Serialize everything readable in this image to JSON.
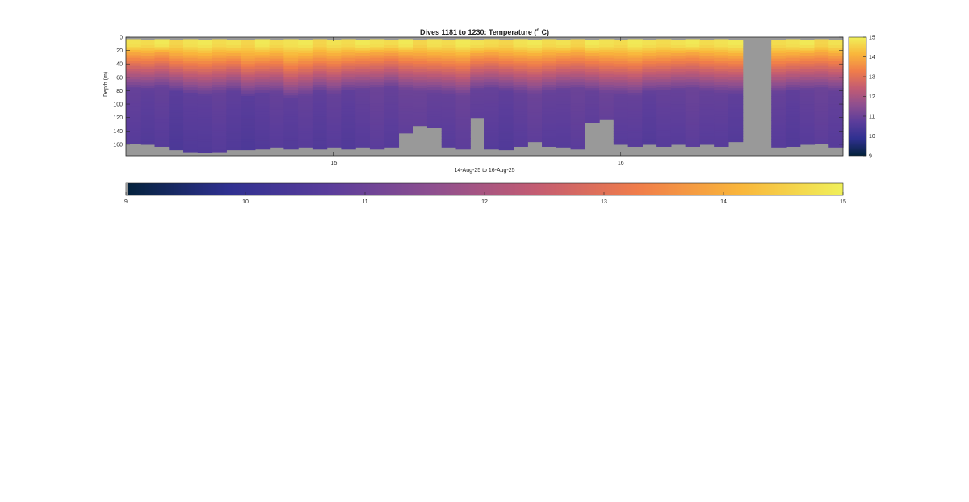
{
  "chart_data": {
    "type": "heatmap",
    "title": "Dives 1181 to 1230: Temperature (",
    "title_superscript": "o",
    "title_suffix": " C)",
    "xlabel": "14-Aug-25 to 16-Aug-25",
    "ylabel": "Depth (m)",
    "x_ticks": [
      "15",
      "16"
    ],
    "x_tick_dives": [
      1195,
      1215
    ],
    "y_ticks": [
      0,
      20,
      40,
      60,
      80,
      100,
      120,
      140,
      160
    ],
    "ylim": [
      0,
      177
    ],
    "xlim_dives": [
      1181,
      1230
    ],
    "colorbar_ticks": [
      9,
      10,
      11,
      12,
      13,
      14,
      15
    ],
    "clim": [
      9,
      15
    ],
    "colormap": [
      "#03223b",
      "#2f3090",
      "#5b3d9b",
      "#8e4f8f",
      "#c35c72",
      "#f07d4a",
      "#f9b63b",
      "#f0f05a"
    ],
    "missing_color": "#999999",
    "dives": [
      1181,
      1182,
      1183,
      1184,
      1185,
      1186,
      1187,
      1188,
      1189,
      1190,
      1191,
      1192,
      1193,
      1194,
      1195,
      1196,
      1197,
      1198,
      1199,
      1200,
      1201,
      1202,
      1203,
      1204,
      1205,
      1206,
      1207,
      1208,
      1209,
      1210,
      1211,
      1212,
      1213,
      1214,
      1215,
      1216,
      1217,
      1218,
      1219,
      1220,
      1221,
      1222,
      1223,
      1224,
      1225,
      1226,
      1227,
      1228,
      1229,
      1230
    ],
    "max_depth_m": [
      158,
      160,
      163,
      165,
      168,
      170,
      170,
      168,
      166,
      165,
      164,
      166,
      164,
      165,
      164,
      164,
      162,
      164,
      164,
      140,
      130,
      135,
      162,
      164,
      120,
      164,
      168,
      163,
      155,
      160,
      164,
      164,
      126,
      123,
      160,
      160,
      160,
      160,
      160,
      160,
      160,
      160,
      156,
      0,
      0,
      162,
      160,
      160,
      158,
      162
    ],
    "surface_gap_m": [
      3,
      4,
      3,
      4,
      3,
      4,
      3,
      4,
      4,
      3,
      4,
      3,
      4,
      3,
      4,
      3,
      4,
      3,
      4,
      3,
      4,
      3,
      4,
      3,
      4,
      3,
      4,
      3,
      4,
      3,
      4,
      3,
      4,
      3,
      4,
      3,
      4,
      3,
      4,
      3,
      4,
      3,
      4,
      0,
      0,
      4,
      3,
      4,
      3,
      4
    ],
    "mixed_layer_depth_m": [
      40,
      42,
      38,
      45,
      48,
      50,
      46,
      44,
      52,
      48,
      46,
      55,
      50,
      45,
      48,
      44,
      42,
      40,
      38,
      42,
      44,
      46,
      48,
      50,
      42,
      40,
      44,
      46,
      48,
      45,
      42,
      40,
      44,
      46,
      48,
      50,
      46,
      44,
      42,
      40,
      44,
      46,
      48,
      0,
      0,
      46,
      44,
      42,
      40,
      44
    ],
    "surface_temp_c": [
      14.8,
      14.7,
      14.9,
      14.6,
      14.8,
      14.9,
      14.7,
      14.8,
      14.6,
      14.9,
      14.7,
      14.8,
      14.9,
      14.6,
      14.8,
      14.7,
      14.9,
      14.8,
      14.7,
      14.9,
      14.6,
      14.8,
      14.7,
      14.9,
      14.8,
      14.7,
      14.6,
      14.8,
      14.9,
      14.7,
      14.8,
      14.6,
      14.9,
      14.8,
      14.7,
      14.9,
      14.8,
      14.7,
      14.8,
      14.9,
      14.7,
      14.8,
      14.9,
      0,
      0,
      14.7,
      14.8,
      14.9,
      14.6,
      14.8
    ],
    "deep_temp_c": [
      10.7,
      10.6,
      10.7,
      10.5,
      10.6,
      10.6,
      10.7,
      10.6,
      10.5,
      10.6,
      10.7,
      10.6,
      10.7,
      10.6,
      10.7,
      10.6,
      10.7,
      10.8,
      10.7,
      10.8,
      10.8,
      10.7,
      10.7,
      10.8,
      10.7,
      10.7,
      10.6,
      10.7,
      10.8,
      10.7,
      10.7,
      10.8,
      10.7,
      10.8,
      10.7,
      10.7,
      10.6,
      10.7,
      10.7,
      10.8,
      10.7,
      10.7,
      10.6,
      0,
      0,
      10.7,
      10.6,
      10.7,
      10.8,
      10.7
    ]
  }
}
